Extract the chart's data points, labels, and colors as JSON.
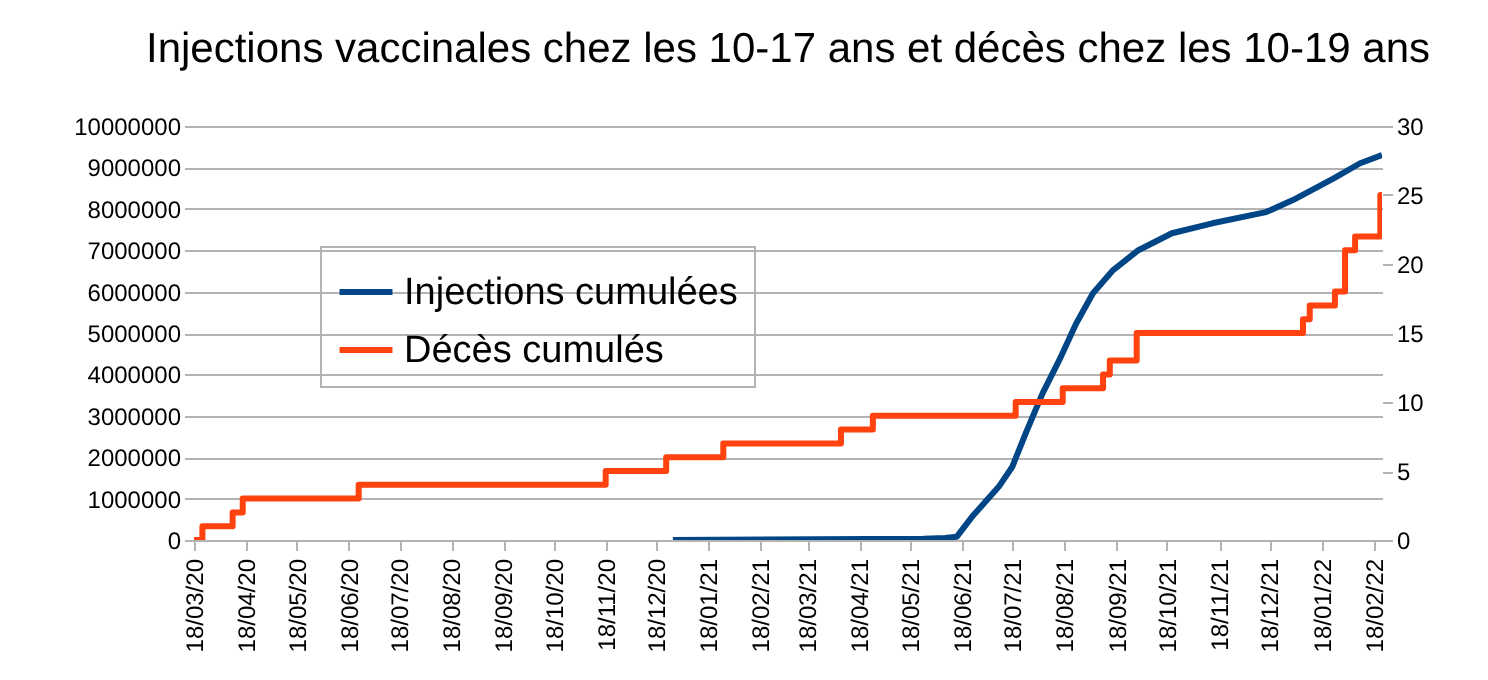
{
  "chart_data": {
    "type": "line",
    "title": "Injections vaccinales chez les 10-17 ans et décès chez les 10-19 ans",
    "series": [
      {
        "name": "Injections cumulées",
        "color": "#004586",
        "type": "line",
        "axis": "y",
        "x": [
          "2020-12-28",
          "2021-05-26",
          "2021-06-08",
          "2021-06-15",
          "2021-06-24",
          "2021-07-10",
          "2021-07-18",
          "2021-07-26",
          "2021-08-05",
          "2021-08-15",
          "2021-08-25",
          "2021-09-04",
          "2021-09-16",
          "2021-10-01",
          "2021-10-21",
          "2021-11-14",
          "2021-12-16",
          "2022-01-01",
          "2022-01-25",
          "2022-02-10",
          "2022-02-23"
        ],
        "values": [
          0,
          30000,
          50000,
          80000,
          560000,
          1290000,
          1770000,
          2580000,
          3540000,
          4350000,
          5230000,
          5960000,
          6520000,
          7000000,
          7410000,
          7650000,
          7920000,
          8210000,
          8730000,
          9100000,
          9300000
        ]
      },
      {
        "name": "Décès cumulés",
        "color": "#ff420e",
        "type": "step",
        "axis": "y2",
        "x": [
          "2020-03-18",
          "2020-03-23",
          "2020-04-10",
          "2020-04-16",
          "2020-06-24",
          "2020-11-18",
          "2020-12-24",
          "2021-01-27",
          "2021-04-07",
          "2021-04-26",
          "2021-07-20",
          "2021-08-17",
          "2021-09-10",
          "2021-09-14",
          "2021-09-30",
          "2022-01-07",
          "2022-01-11",
          "2022-01-26",
          "2022-02-01",
          "2022-02-07",
          "2022-02-22",
          "2022-02-23"
        ],
        "values": [
          0,
          1,
          2,
          3,
          4,
          5,
          6,
          7,
          8,
          9,
          10,
          11,
          12,
          13,
          15,
          16,
          17,
          18,
          21,
          22,
          25,
          25
        ]
      }
    ],
    "xlim": [
      "2020-03-18",
      "2022-02-23"
    ],
    "xticks": [
      {
        "value": "2020-03-18",
        "label": "18/03/20"
      },
      {
        "value": "2020-04-18",
        "label": "18/04/20"
      },
      {
        "value": "2020-05-18",
        "label": "18/05/20"
      },
      {
        "value": "2020-06-18",
        "label": "18/06/20"
      },
      {
        "value": "2020-07-18",
        "label": "18/07/20"
      },
      {
        "value": "2020-08-18",
        "label": "18/08/20"
      },
      {
        "value": "2020-09-18",
        "label": "18/09/20"
      },
      {
        "value": "2020-10-18",
        "label": "18/10/20"
      },
      {
        "value": "2020-11-18",
        "label": "18/11/20"
      },
      {
        "value": "2020-12-18",
        "label": "18/12/20"
      },
      {
        "value": "2021-01-18",
        "label": "18/01/21"
      },
      {
        "value": "2021-02-18",
        "label": "18/02/21"
      },
      {
        "value": "2021-03-18",
        "label": "18/03/21"
      },
      {
        "value": "2021-04-18",
        "label": "18/04/21"
      },
      {
        "value": "2021-05-18",
        "label": "18/05/21"
      },
      {
        "value": "2021-06-18",
        "label": "18/06/21"
      },
      {
        "value": "2021-07-18",
        "label": "18/07/21"
      },
      {
        "value": "2021-08-18",
        "label": "18/08/21"
      },
      {
        "value": "2021-09-18",
        "label": "18/09/21"
      },
      {
        "value": "2021-10-18",
        "label": "18/10/21"
      },
      {
        "value": "2021-11-18",
        "label": "18/11/21"
      },
      {
        "value": "2021-12-18",
        "label": "18/12/21"
      },
      {
        "value": "2022-01-18",
        "label": "18/01/22"
      },
      {
        "value": "2022-02-18",
        "label": "18/02/22"
      }
    ],
    "ylim": [
      0,
      10000000
    ],
    "yticks": [
      0,
      1000000,
      2000000,
      3000000,
      4000000,
      5000000,
      6000000,
      7000000,
      8000000,
      9000000,
      10000000
    ],
    "y2lim": [
      0,
      30
    ],
    "y2ticks": [
      0,
      5,
      10,
      15,
      20,
      25,
      30
    ],
    "grid": "y",
    "legend": "left"
  }
}
